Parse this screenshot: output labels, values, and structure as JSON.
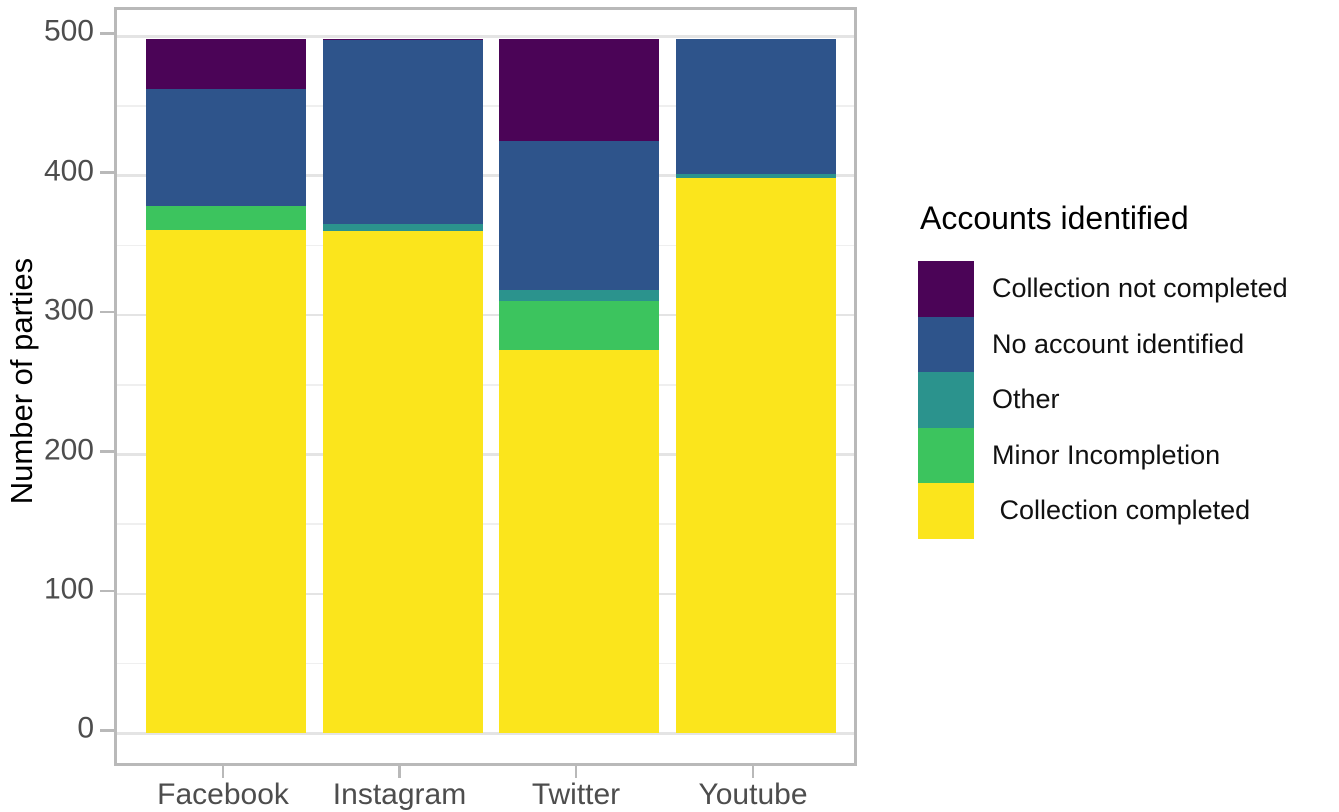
{
  "chart_data": {
    "type": "bar",
    "stacked": true,
    "title": "",
    "xlabel": "",
    "ylabel": "Number of parties",
    "categories": [
      "Facebook",
      "Instagram",
      "Twitter",
      "Youtube"
    ],
    "series": [
      {
        "name": "Collection completed",
        "color": "#FBE51C",
        "values": [
          361,
          360,
          275,
          398
        ]
      },
      {
        "name": "Minor Incompletion",
        "color": "#3CC45E",
        "values": [
          17,
          0,
          35,
          0
        ]
      },
      {
        "name": "Other",
        "color": "#2B938D",
        "values": [
          0,
          5,
          8,
          3
        ]
      },
      {
        "name": "No account identified",
        "color": "#2E548B",
        "values": [
          84,
          132,
          107,
          97
        ]
      },
      {
        "name": "Collection not completed",
        "color": "#4B0457",
        "values": [
          36,
          1,
          73,
          0
        ]
      }
    ],
    "totals": [
      498,
      498,
      498,
      498
    ],
    "ylim": [
      0,
      500
    ],
    "y_ticks": [
      0,
      100,
      200,
      300,
      400,
      500
    ],
    "y_minor_ticks": [
      50,
      150,
      250,
      350,
      450
    ],
    "grid": "major+minor horizontal",
    "legend": {
      "title": "Accounts identified",
      "position": "right",
      "entries": [
        {
          "label": "Collection not completed",
          "color": "#4B0457"
        },
        {
          "label": "No account identified",
          "color": "#2E548B"
        },
        {
          "label": "Other",
          "color": "#2B938D"
        },
        {
          "label": "Minor Incompletion",
          "color": "#3CC45E"
        },
        {
          "label": " Collection completed",
          "color": "#FBE51C"
        }
      ]
    }
  }
}
